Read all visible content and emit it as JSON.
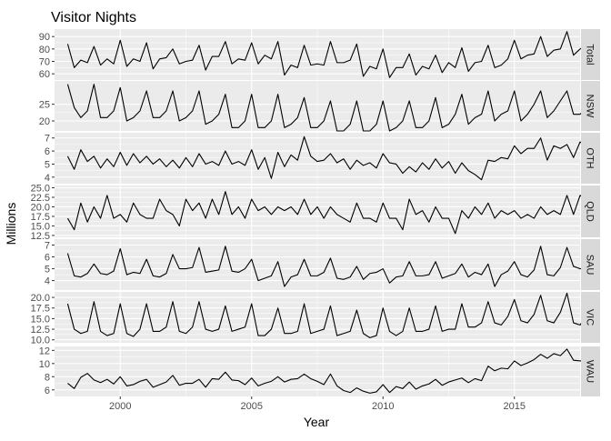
{
  "chart_data": {
    "type": "line",
    "title": "Visitor Nights",
    "xlabel": "Year",
    "ylabel": "Millions",
    "x_start": 1998,
    "x_ticks": [
      2000,
      2005,
      2010,
      2015
    ],
    "xlim": [
      1997.5,
      2017.5
    ],
    "colors": {
      "panel_bg": "#EBEBEB",
      "grid": "#FFFFFF",
      "strip_bg": "#D9D9D9",
      "line": "#000000",
      "tick_text": "#4D4D4D",
      "strip_text": "#1A1A1A"
    },
    "panels": [
      {
        "label": "Total",
        "ylim": [
          55,
          96
        ],
        "ticks": [
          60,
          70,
          80,
          90
        ],
        "values": [
          84,
          65,
          71,
          69,
          82,
          67,
          72,
          68,
          87,
          66,
          72,
          70,
          85,
          64,
          72,
          73,
          80,
          68,
          70,
          71,
          83,
          63,
          74,
          74,
          86,
          68,
          72,
          71,
          85,
          68,
          75,
          72,
          86,
          59,
          67,
          65,
          83,
          67,
          68,
          67,
          86,
          69,
          69,
          71,
          84,
          58,
          66,
          64,
          80,
          57,
          65,
          65,
          76,
          59,
          66,
          64,
          75,
          61,
          69,
          65,
          81,
          62,
          69,
          70,
          83,
          65,
          67,
          72,
          87,
          72,
          75,
          76,
          90,
          74,
          79,
          80,
          94,
          75,
          80,
          83
        ]
      },
      {
        "label": "NSW",
        "ylim": [
          17,
          32
        ],
        "ticks": [
          20,
          25
        ],
        "values": [
          31,
          24,
          21,
          23,
          31,
          21,
          21,
          23,
          30,
          20,
          21,
          23,
          29,
          21,
          21,
          23,
          29,
          20,
          21,
          23,
          29,
          19,
          20,
          22,
          28,
          18,
          18,
          20,
          28,
          18,
          18,
          20,
          28,
          18,
          19,
          21,
          27,
          18,
          18,
          20,
          26,
          17,
          17,
          19,
          26,
          17,
          17,
          19,
          26,
          17,
          18,
          20,
          26,
          18,
          18,
          20,
          27,
          18,
          19,
          22,
          28,
          19,
          21,
          22,
          29,
          20,
          22,
          23,
          29,
          20,
          22,
          25,
          29,
          21,
          23,
          26,
          29,
          22,
          22,
          24
        ]
      },
      {
        "label": "OTH",
        "ylim": [
          3.5,
          7.4
        ],
        "ticks": [
          4,
          5,
          6,
          7
        ],
        "values": [
          5.6,
          4.6,
          6.1,
          5.2,
          5.6,
          4.7,
          5.4,
          4.8,
          5.9,
          4.9,
          5.8,
          5.1,
          5.6,
          5.0,
          5.4,
          4.8,
          5.3,
          4.7,
          5.5,
          4.8,
          5.8,
          5.0,
          5.2,
          4.9,
          6.0,
          5.0,
          5.2,
          4.9,
          6.1,
          4.6,
          5.5,
          3.9,
          5.9,
          4.8,
          5.7,
          5.3,
          7.1,
          5.6,
          5.2,
          5.3,
          5.8,
          5.1,
          5.4,
          4.6,
          5.3,
          4.9,
          5.1,
          4.7,
          5.8,
          5.1,
          5.0,
          4.3,
          4.8,
          4.4,
          5.1,
          4.6,
          5.4,
          4.7,
          5.2,
          4.3,
          5.1,
          4.5,
          4.2,
          3.8,
          5.3,
          5.2,
          5.5,
          5.4,
          6.4,
          5.8,
          6.2,
          6.2,
          7.0,
          5.3,
          6.4,
          6.2,
          6.5,
          5.5,
          6.7,
          6.3
        ]
      },
      {
        "label": "QLD",
        "ylim": [
          12,
          25.6
        ],
        "ticks": [
          12.5,
          15.0,
          17.5,
          20.0,
          22.5,
          25.0
        ],
        "values": [
          17,
          14,
          21,
          16,
          20,
          17,
          23,
          17,
          18,
          16,
          21,
          18,
          17,
          17,
          22,
          19,
          18,
          15,
          22,
          19,
          21,
          17,
          22,
          18,
          24,
          18,
          20,
          17,
          22,
          19,
          20,
          18,
          20,
          19,
          20,
          18,
          22,
          18,
          20,
          17,
          20,
          18,
          17,
          16,
          21,
          17,
          17,
          16,
          21,
          17,
          17,
          14,
          22,
          18,
          19,
          16,
          20,
          17,
          17,
          13,
          19,
          17,
          20,
          18,
          21,
          17,
          19,
          18,
          19,
          17,
          18,
          17,
          20,
          18,
          19,
          18,
          23,
          18,
          23,
          22
        ]
      },
      {
        "label": "SAU",
        "ylim": [
          3.2,
          7.5
        ],
        "ticks": [
          4,
          5,
          6,
          7
        ],
        "values": [
          6.3,
          4.4,
          4.3,
          4.6,
          5.4,
          4.6,
          4.5,
          4.8,
          6.7,
          4.5,
          4.7,
          4.6,
          5.8,
          4.4,
          4.3,
          4.6,
          6.2,
          5.0,
          5.0,
          5.1,
          6.8,
          4.7,
          4.8,
          4.9,
          6.9,
          4.8,
          4.7,
          5.0,
          5.8,
          4.0,
          4.2,
          4.4,
          5.6,
          3.5,
          4.3,
          4.5,
          5.8,
          4.4,
          4.4,
          4.7,
          5.9,
          4.2,
          4.1,
          4.3,
          5.2,
          4.1,
          4.6,
          4.7,
          5.0,
          3.8,
          4.3,
          4.4,
          5.6,
          4.4,
          4.4,
          4.5,
          5.6,
          4.2,
          4.4,
          4.6,
          5.4,
          4.3,
          4.7,
          4.5,
          5.4,
          3.5,
          4.5,
          4.8,
          5.6,
          4.5,
          4.3,
          4.9,
          6.9,
          4.5,
          4.4,
          5.1,
          6.8,
          5.2,
          5.0,
          5.0
        ]
      },
      {
        "label": "VIC",
        "ylim": [
          9.3,
          21.3
        ],
        "ticks": [
          10.0,
          12.5,
          15.0,
          17.5,
          20.0
        ],
        "values": [
          18.5,
          12.5,
          11.5,
          12.0,
          19.0,
          12.0,
          11.0,
          11.5,
          18.5,
          11.5,
          10.8,
          12.5,
          18.5,
          12.0,
          12.0,
          13.0,
          19.0,
          12.0,
          11.5,
          13.0,
          19.0,
          12.5,
          12.0,
          12.5,
          18.0,
          12.0,
          12.5,
          13.0,
          18.5,
          11.0,
          11.0,
          12.5,
          17.5,
          11.5,
          11.5,
          12.0,
          18.5,
          11.5,
          12.0,
          12.5,
          18.0,
          11.0,
          11.5,
          12.0,
          17.0,
          11.5,
          10.5,
          11.0,
          17.5,
          12.0,
          11.0,
          12.0,
          17.5,
          12.0,
          12.0,
          12.5,
          18.0,
          12.0,
          12.5,
          12.5,
          18.5,
          13.0,
          13.0,
          14.0,
          19.0,
          14.0,
          13.5,
          15.5,
          19.5,
          14.5,
          14.0,
          16.0,
          20.5,
          14.5,
          14.0,
          16.5,
          21.0,
          14.0,
          13.5,
          16.0
        ]
      },
      {
        "label": "WAU",
        "ylim": [
          5.0,
          12.6
        ],
        "ticks": [
          6,
          8,
          10,
          12
        ],
        "values": [
          7.0,
          6.2,
          7.9,
          8.5,
          7.5,
          7.1,
          7.6,
          6.9,
          8.0,
          6.6,
          6.8,
          7.3,
          7.6,
          6.4,
          6.8,
          7.2,
          8.2,
          6.7,
          7.0,
          7.0,
          7.6,
          6.4,
          7.7,
          7.6,
          8.7,
          7.5,
          7.4,
          6.8,
          7.8,
          6.6,
          7.0,
          7.3,
          8.0,
          7.2,
          7.6,
          7.7,
          8.4,
          7.7,
          7.3,
          6.8,
          8.4,
          6.6,
          5.9,
          5.6,
          6.3,
          5.8,
          5.5,
          5.7,
          6.8,
          5.6,
          6.5,
          6.2,
          7.2,
          6.1,
          6.6,
          6.9,
          7.6,
          6.7,
          7.2,
          7.5,
          7.8,
          7.1,
          7.7,
          7.4,
          9.6,
          8.9,
          9.3,
          9.2,
          10.4,
          9.7,
          10.1,
          10.6,
          11.4,
          10.8,
          11.5,
          11.2,
          12.2,
          10.5,
          10.4,
          10.6
        ]
      }
    ]
  }
}
